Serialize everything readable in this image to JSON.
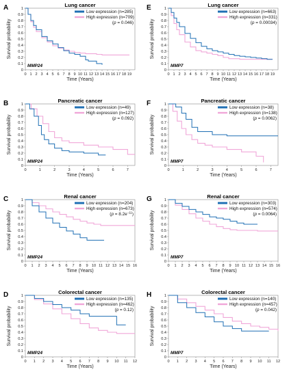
{
  "chart_data": [
    {
      "panel": "A",
      "type": "line",
      "title": "Lung cancer",
      "gene": "MMP24",
      "xlabel": "Time (Years)",
      "ylabel": "Survival probability",
      "xlim": [
        0,
        20
      ],
      "ylim": [
        0,
        1
      ],
      "xticks": [
        0,
        1,
        2,
        3,
        4,
        5,
        6,
        7,
        8,
        9,
        10,
        11,
        12,
        13,
        14,
        15,
        16,
        17,
        18,
        19
      ],
      "yticks": [
        0,
        0.1,
        0.2,
        0.3,
        0.4,
        0.5,
        0.6,
        0.7,
        0.8,
        0.9,
        1
      ],
      "ytick_labels": [
        "0",
        "0.1",
        "0.2",
        "0.3",
        "0.4",
        "0.5",
        "0.6",
        "0.7",
        "0.8",
        "0.9",
        "1"
      ],
      "pvalue_prefix": "(",
      "pvalue_symbol": "p",
      "pvalue_text": " = 0.046)",
      "series": [
        {
          "name": "Low expression (n=285)",
          "color": "#1f6fb4",
          "x": [
            0,
            0.5,
            1,
            1.5,
            2,
            3,
            4,
            5,
            6,
            7,
            8,
            9,
            10,
            11,
            11.5,
            12,
            13,
            14
          ],
          "y": [
            1,
            0.9,
            0.8,
            0.72,
            0.65,
            0.54,
            0.47,
            0.42,
            0.36,
            0.31,
            0.27,
            0.25,
            0.22,
            0.16,
            0.14,
            0.14,
            0.1,
            0.08
          ]
        },
        {
          "name": "High expression (n=709)",
          "color": "#f0a6d8",
          "x": [
            0,
            0.5,
            1,
            1.5,
            2,
            3,
            4,
            5,
            6,
            7,
            8,
            9,
            10,
            11,
            12,
            13,
            14,
            15,
            16,
            17,
            18,
            19
          ],
          "y": [
            1,
            0.9,
            0.78,
            0.69,
            0.62,
            0.52,
            0.45,
            0.39,
            0.35,
            0.32,
            0.3,
            0.28,
            0.27,
            0.26,
            0.26,
            0.25,
            0.24,
            0.24,
            0.24,
            0.24,
            0.24,
            0.24
          ]
        }
      ]
    },
    {
      "panel": "E",
      "type": "line",
      "title": "Lung cancer",
      "gene": "MMP7",
      "xlabel": "Time (Years)",
      "ylabel": "Survival probability",
      "xlim": [
        0,
        20
      ],
      "ylim": [
        0,
        1
      ],
      "xticks": [
        0,
        1,
        2,
        3,
        4,
        5,
        6,
        7,
        8,
        9,
        10,
        11,
        12,
        13,
        14,
        15,
        16,
        17,
        18,
        19
      ],
      "yticks": [
        0,
        0.1,
        0.2,
        0.3,
        0.4,
        0.5,
        0.6,
        0.7,
        0.8,
        0.9,
        1
      ],
      "ytick_labels": [
        "0",
        "0.1",
        "0.2",
        "0.3",
        "0.4",
        "0.5",
        "0.6",
        "0.7",
        "0.8",
        "0.9",
        "1"
      ],
      "pvalue_prefix": "(",
      "pvalue_symbol": "p",
      "pvalue_text": " = 0.00034)",
      "series": [
        {
          "name": "Low expression (n=663)",
          "color": "#1f6fb4",
          "x": [
            0,
            0.5,
            1,
            1.5,
            2,
            3,
            4,
            5,
            6,
            7,
            8,
            9,
            10,
            11,
            12,
            13,
            14,
            15,
            16,
            17,
            18,
            19
          ],
          "y": [
            1,
            0.93,
            0.84,
            0.77,
            0.7,
            0.59,
            0.51,
            0.44,
            0.38,
            0.34,
            0.31,
            0.29,
            0.27,
            0.25,
            0.23,
            0.22,
            0.21,
            0.2,
            0.19,
            0.18,
            0.17,
            0.17
          ]
        },
        {
          "name": "High expression (n=331)",
          "color": "#f0a6d8",
          "x": [
            0,
            0.5,
            1,
            1.5,
            2,
            3,
            4,
            5,
            6,
            7,
            8,
            9,
            10,
            11,
            12,
            13,
            14,
            15,
            16,
            17,
            18,
            19
          ],
          "y": [
            1,
            0.88,
            0.75,
            0.65,
            0.57,
            0.45,
            0.37,
            0.31,
            0.29,
            0.27,
            0.25,
            0.23,
            0.2,
            0.18,
            0.18,
            0.17,
            0.17,
            0.17,
            0.17,
            0.17,
            0.17,
            0.17
          ]
        }
      ]
    },
    {
      "panel": "B",
      "type": "line",
      "title": "Pancreatic cancer",
      "gene": "MMP24",
      "xlabel": "Time (Years)",
      "ylabel": "Survival probability",
      "xlim": [
        0,
        7.5
      ],
      "ylim": [
        0,
        1
      ],
      "xticks": [
        0,
        1,
        2,
        3,
        4,
        5,
        6,
        7
      ],
      "yticks": [
        0,
        0.1,
        0.2,
        0.3,
        0.4,
        0.5,
        0.6,
        0.7,
        0.8,
        0.9,
        1
      ],
      "ytick_labels": [
        "0",
        "0.1",
        "0.2",
        "0.3",
        "0.4",
        "0.5",
        "0.6",
        "0.7",
        "0.8",
        "0.9",
        "1"
      ],
      "pvalue_prefix": "(",
      "pvalue_symbol": "p",
      "pvalue_text": " = 0.092)",
      "series": [
        {
          "name": "Low expression (n=49)",
          "color": "#1f6fb4",
          "x": [
            0,
            0.3,
            0.6,
            0.9,
            1.1,
            1.3,
            1.6,
            2,
            2.5,
            3,
            4,
            5,
            5.5
          ],
          "y": [
            1,
            0.92,
            0.8,
            0.65,
            0.5,
            0.42,
            0.35,
            0.28,
            0.24,
            0.22,
            0.2,
            0.17,
            0.17
          ]
        },
        {
          "name": "High expression (n=127)",
          "color": "#f0a6d8",
          "x": [
            0,
            0.4,
            0.8,
            1.2,
            1.6,
            2,
            2.5,
            3,
            4,
            5,
            6,
            7,
            7.5
          ],
          "y": [
            1,
            0.92,
            0.8,
            0.68,
            0.55,
            0.45,
            0.4,
            0.37,
            0.33,
            0.3,
            0.26,
            0.18,
            0.18
          ]
        }
      ]
    },
    {
      "panel": "F",
      "type": "line",
      "title": "Pancreatic cancer",
      "gene": "MMP7",
      "xlabel": "Time (Years)",
      "ylabel": "Survival probability",
      "xlim": [
        0,
        7.5
      ],
      "ylim": [
        0,
        1
      ],
      "xticks": [
        0,
        1,
        2,
        3,
        4,
        5,
        6,
        7
      ],
      "yticks": [
        0,
        0.1,
        0.2,
        0.3,
        0.4,
        0.5,
        0.6,
        0.7,
        0.8,
        0.9,
        1
      ],
      "ytick_labels": [
        "0",
        "0.1",
        "0.2",
        "0.3",
        "0.4",
        "0.5",
        "0.6",
        "0.7",
        "0.8",
        "0.9",
        "1"
      ],
      "pvalue_prefix": "(",
      "pvalue_symbol": "p",
      "pvalue_text": " = 0.0062)",
      "series": [
        {
          "name": "Low expression (n=38)",
          "color": "#1f6fb4",
          "x": [
            0,
            0.5,
            0.9,
            1.2,
            1.6,
            2,
            3,
            4,
            5,
            6,
            7,
            7.5
          ],
          "y": [
            1,
            0.95,
            0.85,
            0.75,
            0.62,
            0.55,
            0.5,
            0.48,
            0.48,
            0.48,
            0.48,
            0.48
          ]
        },
        {
          "name": "High expression (n=138)",
          "color": "#f0a6d8",
          "x": [
            0,
            0.3,
            0.6,
            0.9,
            1.2,
            1.6,
            2,
            2.5,
            3,
            4,
            5,
            6,
            6.5
          ],
          "y": [
            1,
            0.88,
            0.72,
            0.6,
            0.5,
            0.42,
            0.36,
            0.33,
            0.3,
            0.26,
            0.22,
            0.15,
            0.05
          ]
        }
      ]
    },
    {
      "panel": "C",
      "type": "line",
      "title": "Renal cancer",
      "gene": "MMP24",
      "xlabel": "Time (Years)",
      "ylabel": "Survival probability",
      "xlim": [
        0,
        16
      ],
      "ylim": [
        0,
        1
      ],
      "xticks": [
        0,
        1,
        2,
        3,
        4,
        5,
        6,
        7,
        8,
        9,
        10,
        11,
        12,
        13,
        14,
        15,
        16
      ],
      "yticks": [
        0,
        0.1,
        0.2,
        0.3,
        0.4,
        0.5,
        0.6,
        0.7,
        0.8,
        0.9,
        1
      ],
      "ytick_labels": [
        "0",
        "0.1",
        "0.2",
        "0.3",
        "0.4",
        "0.5",
        "0.6",
        "0.7",
        "0.8",
        "0.9",
        "1"
      ],
      "pvalue_prefix": "(",
      "pvalue_symbol": "p",
      "pvalue_text": " = 8.2e",
      "pvalue_sup": "−11",
      "pvalue_suffix": ")",
      "series": [
        {
          "name": "Low expression (n=204)",
          "color": "#1f6fb4",
          "x": [
            0,
            1,
            2,
            3,
            4,
            5,
            6,
            7,
            8,
            9,
            10,
            11,
            11.5
          ],
          "y": [
            1,
            0.9,
            0.8,
            0.7,
            0.62,
            0.55,
            0.49,
            0.44,
            0.38,
            0.34,
            0.34,
            0.34,
            0.34
          ]
        },
        {
          "name": "High expression (n=673)",
          "color": "#f0a6d8",
          "x": [
            0,
            1,
            2,
            3,
            4,
            5,
            6,
            7,
            8,
            9,
            10,
            11,
            12,
            13,
            14,
            15,
            16
          ],
          "y": [
            1,
            0.95,
            0.9,
            0.85,
            0.8,
            0.76,
            0.72,
            0.68,
            0.65,
            0.62,
            0.6,
            0.58,
            0.58,
            0.58,
            0.58,
            0.58,
            0.58
          ]
        }
      ]
    },
    {
      "panel": "G",
      "type": "line",
      "title": "Renal cancer",
      "gene": "MMP7",
      "xlabel": "Time (Years)",
      "ylabel": "Survival probability",
      "xlim": [
        0,
        16
      ],
      "ylim": [
        0,
        1
      ],
      "xticks": [
        0,
        1,
        2,
        3,
        4,
        5,
        6,
        7,
        8,
        9,
        10,
        11,
        12,
        13,
        14,
        15,
        16
      ],
      "yticks": [
        0,
        0.1,
        0.2,
        0.3,
        0.4,
        0.5,
        0.6,
        0.7,
        0.8,
        0.9,
        1
      ],
      "ytick_labels": [
        "0",
        "0.1",
        "0.2",
        "0.3",
        "0.4",
        "0.5",
        "0.6",
        "0.7",
        "0.8",
        "0.9",
        "1"
      ],
      "pvalue_prefix": "(",
      "pvalue_symbol": "p",
      "pvalue_text": " = 0.0064)",
      "series": [
        {
          "name": "Low expression (n=303)",
          "color": "#1f6fb4",
          "x": [
            0,
            1,
            2,
            3,
            4,
            5,
            6,
            7,
            8,
            9,
            10,
            11,
            12,
            13
          ],
          "y": [
            1,
            0.94,
            0.89,
            0.84,
            0.8,
            0.76,
            0.72,
            0.7,
            0.68,
            0.65,
            0.62,
            0.6,
            0.6,
            0.6
          ]
        },
        {
          "name": "High expression (n=574)",
          "color": "#f0a6d8",
          "x": [
            0,
            1,
            2,
            3,
            4,
            5,
            6,
            7,
            8,
            9,
            10,
            11,
            12,
            13,
            14,
            15,
            16
          ],
          "y": [
            1,
            0.91,
            0.84,
            0.77,
            0.7,
            0.65,
            0.6,
            0.56,
            0.53,
            0.51,
            0.5,
            0.5,
            0.5,
            0.49,
            0.49,
            0.49,
            0.49
          ]
        }
      ]
    },
    {
      "panel": "D",
      "type": "line",
      "title": "Colorectal cancer",
      "gene": "MMP24",
      "xlabel": "Time (Years)",
      "ylabel": "Survival probability",
      "xlim": [
        0,
        12
      ],
      "ylim": [
        0,
        1
      ],
      "xticks": [
        0,
        1,
        2,
        3,
        4,
        5,
        6,
        7,
        8,
        9,
        10,
        11,
        12
      ],
      "yticks": [
        0,
        0.1,
        0.2,
        0.3,
        0.4,
        0.5,
        0.6,
        0.7,
        0.8,
        0.9,
        1
      ],
      "ytick_labels": [
        "0",
        "0.1",
        "0.2",
        "0.3",
        "0.4",
        "0.5",
        "0.6",
        "0.7",
        "0.8",
        "0.9",
        "1"
      ],
      "pvalue_prefix": "(",
      "pvalue_symbol": "p",
      "pvalue_text": " = 0.12)",
      "series": [
        {
          "name": "Low expression (n=135)",
          "color": "#1f6fb4",
          "x": [
            0,
            1,
            2,
            3,
            4,
            5,
            6,
            7,
            8,
            9,
            10,
            11
          ],
          "y": [
            1,
            0.95,
            0.9,
            0.85,
            0.8,
            0.76,
            0.7,
            0.66,
            0.66,
            0.66,
            0.52,
            0.52
          ]
        },
        {
          "name": "High expression (n=462)",
          "color": "#f0a6d8",
          "x": [
            0,
            1,
            2,
            3,
            4,
            5,
            6,
            7,
            8,
            9,
            10,
            11,
            12
          ],
          "y": [
            1,
            0.93,
            0.86,
            0.78,
            0.7,
            0.62,
            0.54,
            0.47,
            0.43,
            0.4,
            0.38,
            0.38,
            0.38
          ]
        }
      ]
    },
    {
      "panel": "H",
      "type": "line",
      "title": "Colorectal cancer",
      "gene": "MMP7",
      "xlabel": "Time (Years)",
      "ylabel": "Survival probability",
      "xlim": [
        0,
        12
      ],
      "ylim": [
        0,
        1
      ],
      "xticks": [
        0,
        1,
        2,
        3,
        4,
        5,
        6,
        7,
        8,
        9,
        10,
        11,
        12
      ],
      "yticks": [
        0,
        0.1,
        0.2,
        0.3,
        0.4,
        0.5,
        0.6,
        0.7,
        0.8,
        0.9,
        1
      ],
      "ytick_labels": [
        "0",
        "0.1",
        "0.2",
        "0.3",
        "0.4",
        "0.5",
        "0.6",
        "0.7",
        "0.8",
        "0.9",
        "1"
      ],
      "pvalue_prefix": "(",
      "pvalue_symbol": "p",
      "pvalue_text": " = 0.042)",
      "series": [
        {
          "name": "Low expression (n=140)",
          "color": "#1f6fb4",
          "x": [
            0,
            1,
            2,
            3,
            4,
            5,
            6,
            7,
            8,
            9,
            10,
            11
          ],
          "y": [
            1,
            0.88,
            0.8,
            0.72,
            0.65,
            0.57,
            0.5,
            0.46,
            0.42,
            0.42,
            0.42,
            0.42
          ]
        },
        {
          "name": "High expression (n=457)",
          "color": "#f0a6d8",
          "x": [
            0,
            1,
            2,
            3,
            4,
            5,
            6,
            7,
            8,
            9,
            10,
            11,
            12
          ],
          "y": [
            1,
            0.94,
            0.88,
            0.82,
            0.76,
            0.7,
            0.64,
            0.58,
            0.54,
            0.5,
            0.48,
            0.45,
            0.42
          ]
        }
      ]
    }
  ]
}
